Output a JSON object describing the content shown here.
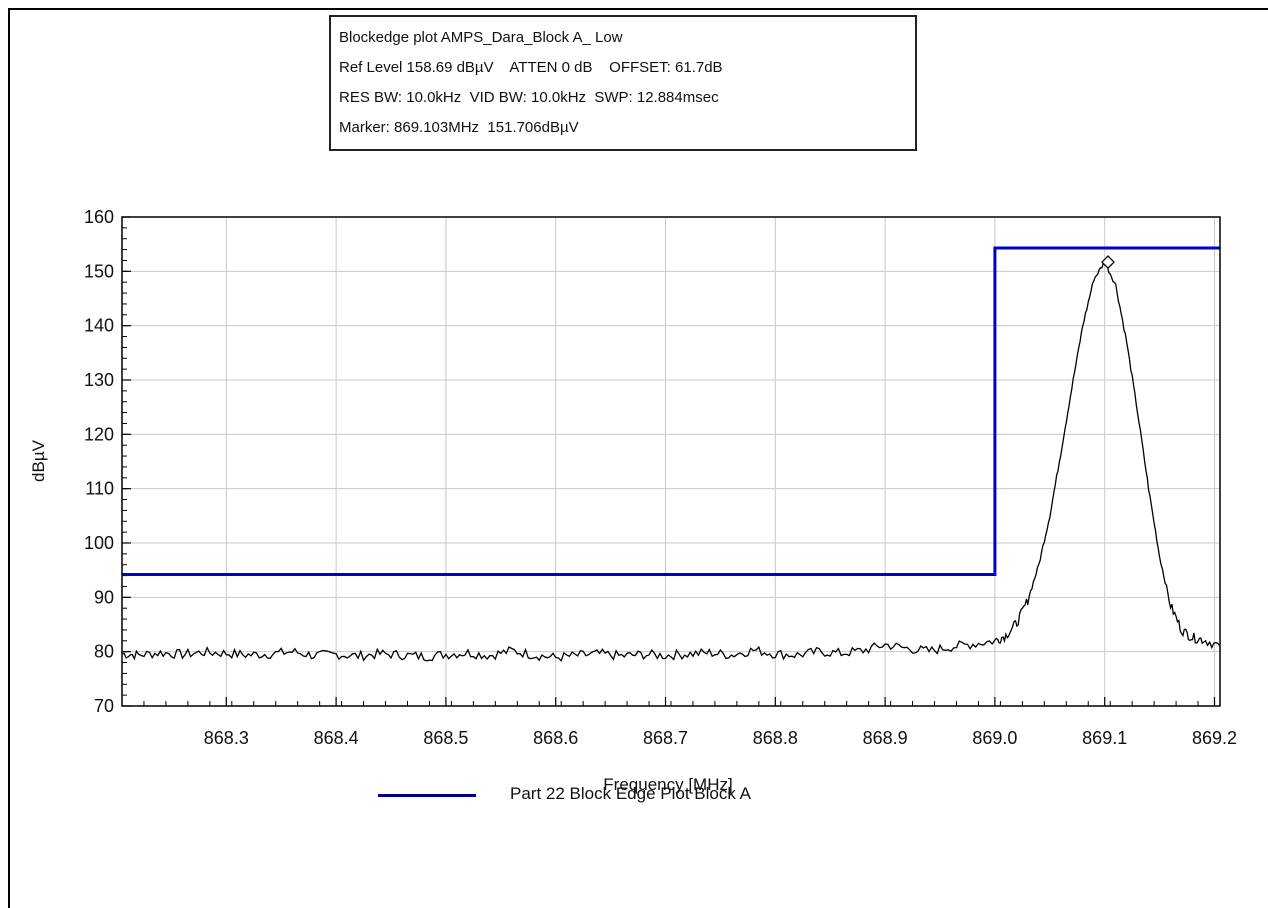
{
  "info_box": {
    "lines": [
      "Blockedge plot AMPS_Dara_Block A_ Low",
      "Ref Level 158.69 dBµV    ATTEN 0 dB    OFFSET: 61.7dB",
      "RES BW: 10.0kHz  VID BW: 10.0kHz  SWP: 12.884msec",
      "Marker: 869.103MHz  151.706dBµV"
    ]
  },
  "legend": {
    "label": "Part 22 Block Edge Plot  Block A",
    "color": "#00008b"
  },
  "chart_data": {
    "type": "line",
    "xlabel": "Frequency [MHz]",
    "ylabel": "dBµV",
    "xlim": [
      868.205,
      869.205
    ],
    "ylim": [
      70,
      160
    ],
    "x_ticks": [
      "868.3",
      "868.4",
      "868.5",
      "868.6",
      "868.7",
      "868.8",
      "868.9",
      "869.0",
      "869.1",
      "869.2"
    ],
    "y_ticks": [
      "70",
      "80",
      "90",
      "100",
      "110",
      "120",
      "130",
      "140",
      "150",
      "160"
    ],
    "grid": true,
    "legend_position": "bottom",
    "series": [
      {
        "name": "Part 22 Block Edge Plot  Block A",
        "color": "#0000cc",
        "x": [
          868.205,
          869.0,
          869.0,
          869.205
        ],
        "y": [
          94.2,
          94.2,
          154.3,
          154.3
        ]
      },
      {
        "color": "#000000",
        "x": [
          868.205,
          868.22,
          868.24,
          868.26,
          868.28,
          868.3,
          868.32,
          868.34,
          868.36,
          868.38,
          868.4,
          868.42,
          868.44,
          868.46,
          868.48,
          868.5,
          868.52,
          868.54,
          868.56,
          868.58,
          868.6,
          868.62,
          868.64,
          868.66,
          868.68,
          868.7,
          868.72,
          868.74,
          868.76,
          868.78,
          868.8,
          868.82,
          868.84,
          868.86,
          868.88,
          868.9,
          868.92,
          868.94,
          868.96,
          868.98,
          869.0,
          869.01,
          869.02,
          869.03,
          869.04,
          869.05,
          869.06,
          869.07,
          869.08,
          869.09,
          869.1,
          869.11,
          869.12,
          869.13,
          869.14,
          869.15,
          869.16,
          869.17,
          869.18,
          869.19,
          869.205
        ],
        "y": [
          79.6,
          79.4,
          79.8,
          79.5,
          79.9,
          79.7,
          79.4,
          79.6,
          80.0,
          79.3,
          79.5,
          79.2,
          79.6,
          79.4,
          79.1,
          79.5,
          79.8,
          79.3,
          80.2,
          79.4,
          78.9,
          79.3,
          79.6,
          79.2,
          79.5,
          79.3,
          79.6,
          79.8,
          79.4,
          80.3,
          79.6,
          79.4,
          80.0,
          79.7,
          80.2,
          81.3,
          80.6,
          80.1,
          80.9,
          81.4,
          82.0,
          83.0,
          85.3,
          89.5,
          96.0,
          105.0,
          116.5,
          128.5,
          140.0,
          148.5,
          151.7,
          147.5,
          137.0,
          124.0,
          110.0,
          97.5,
          88.5,
          84.0,
          82.6,
          82.2,
          81.0
        ],
        "marker": {
          "x": 869.103,
          "y": 151.706
        }
      }
    ]
  }
}
